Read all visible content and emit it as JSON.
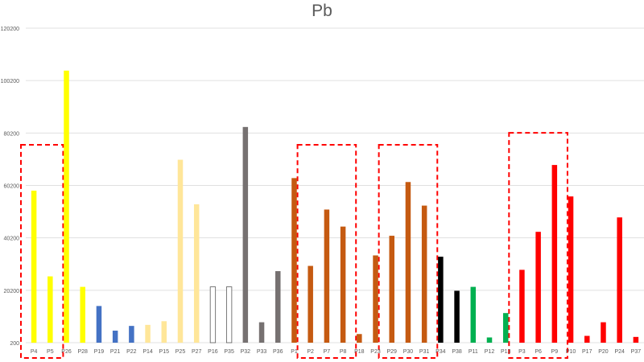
{
  "chart_data": {
    "type": "bar",
    "title": "Pb",
    "xlabel": "",
    "ylabel": "",
    "ylim": [
      200,
      120200
    ],
    "yticks": [
      200,
      20200,
      40200,
      60200,
      80200,
      100200,
      120200
    ],
    "grid": true,
    "legend": "none",
    "bars": [
      {
        "category": "P4",
        "value": 58200,
        "color": "#ffff00",
        "fill": true
      },
      {
        "category": "P5",
        "value": 25500,
        "color": "#ffff00",
        "fill": true
      },
      {
        "category": "P26",
        "value": 104000,
        "color": "#ffff00",
        "fill": true
      },
      {
        "category": "P28",
        "value": 21500,
        "color": "#ffff00",
        "fill": true
      },
      {
        "category": "P19",
        "value": 14200,
        "color": "#4472c4",
        "fill": true
      },
      {
        "category": "P21",
        "value": 4800,
        "color": "#4472c4",
        "fill": true
      },
      {
        "category": "P22",
        "value": 6600,
        "color": "#4472c4",
        "fill": true
      },
      {
        "category": "P14",
        "value": 7000,
        "color": "#ffe699",
        "fill": true
      },
      {
        "category": "P15",
        "value": 8400,
        "color": "#ffe699",
        "fill": true
      },
      {
        "category": "P25",
        "value": 70000,
        "color": "#ffe699",
        "fill": true
      },
      {
        "category": "P27",
        "value": 53000,
        "color": "#ffe699",
        "fill": true
      },
      {
        "category": "P16",
        "value": 21500,
        "color": "#595959",
        "fill": false
      },
      {
        "category": "P35",
        "value": 21500,
        "color": "#595959",
        "fill": false
      },
      {
        "category": "P32",
        "value": 82500,
        "color": "#767171",
        "fill": true
      },
      {
        "category": "P33",
        "value": 8000,
        "color": "#767171",
        "fill": true
      },
      {
        "category": "P36",
        "value": 27500,
        "color": "#767171",
        "fill": true
      },
      {
        "category": "P1",
        "value": 63000,
        "color": "#c55a11",
        "fill": true
      },
      {
        "category": "P2",
        "value": 29500,
        "color": "#c55a11",
        "fill": true
      },
      {
        "category": "P7",
        "value": 51000,
        "color": "#c55a11",
        "fill": true
      },
      {
        "category": "P8",
        "value": 44500,
        "color": "#c55a11",
        "fill": true
      },
      {
        "category": "P18",
        "value": 3500,
        "color": "#c55a11",
        "fill": true
      },
      {
        "category": "P23",
        "value": 33500,
        "color": "#c55a11",
        "fill": true
      },
      {
        "category": "P29",
        "value": 41000,
        "color": "#c55a11",
        "fill": true
      },
      {
        "category": "P30",
        "value": 61500,
        "color": "#c55a11",
        "fill": true
      },
      {
        "category": "P31",
        "value": 52500,
        "color": "#c55a11",
        "fill": true
      },
      {
        "category": "P34",
        "value": 33000,
        "color": "#000000",
        "fill": true
      },
      {
        "category": "P38",
        "value": 20000,
        "color": "#000000",
        "fill": true
      },
      {
        "category": "P11",
        "value": 21500,
        "color": "#00b050",
        "fill": true
      },
      {
        "category": "P12",
        "value": 2200,
        "color": "#00b050",
        "fill": true
      },
      {
        "category": "P13",
        "value": 11500,
        "color": "#00b050",
        "fill": true
      },
      {
        "category": "P3",
        "value": 28000,
        "color": "#ff0000",
        "fill": true
      },
      {
        "category": "P6",
        "value": 42500,
        "color": "#ff0000",
        "fill": true
      },
      {
        "category": "P9",
        "value": 68000,
        "color": "#ff0000",
        "fill": true
      },
      {
        "category": "P10",
        "value": 56000,
        "color": "#ff0000",
        "fill": true
      },
      {
        "category": "P17",
        "value": 2800,
        "color": "#ff0000",
        "fill": true
      },
      {
        "category": "P20",
        "value": 8000,
        "color": "#ff0000",
        "fill": true
      },
      {
        "category": "P24",
        "value": 48000,
        "color": "#ff0000",
        "fill": true
      },
      {
        "category": "P37",
        "value": 2400,
        "color": "#ff0000",
        "fill": true
      }
    ],
    "highlight_groups": [
      {
        "members": [
          "P4",
          "P5"
        ],
        "style": "dashed-box",
        "color": "#ff0000"
      },
      {
        "members": [
          "P2",
          "P7",
          "P8"
        ],
        "style": "dashed-box",
        "color": "#ff0000"
      },
      {
        "members": [
          "P29",
          "P30",
          "P31"
        ],
        "style": "dashed-box",
        "color": "#ff0000"
      },
      {
        "members": [
          "P3",
          "P6",
          "P9"
        ],
        "style": "dashed-box",
        "color": "#ff0000"
      }
    ]
  }
}
